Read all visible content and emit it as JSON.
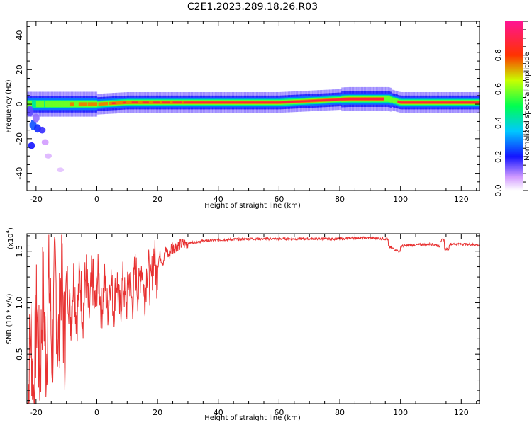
{
  "title": "C2E1.2023.289.18.26.R03",
  "chart_data": [
    {
      "type": "heatmap",
      "xlabel": "Height of straight line (km)",
      "ylabel": "Frequency (Hz)",
      "xlim": [
        -23,
        126
      ],
      "ylim": [
        -50,
        48
      ],
      "x_ticks": [
        -20,
        0,
        20,
        40,
        60,
        80,
        100,
        120
      ],
      "y_ticks": [
        -40,
        -20,
        0,
        20,
        40
      ],
      "colorbar": {
        "label": "Normalized spectral amplitude",
        "range": [
          0,
          1
        ],
        "ticks": [
          "0.0",
          "0.2",
          "0.4",
          "0.6",
          "0.8"
        ]
      },
      "ridge": [
        {
          "x": -23,
          "freq": 0,
          "amp": 0.55
        },
        {
          "x": -18,
          "freq": 0,
          "amp": 0.6
        },
        {
          "x": -10,
          "freq": 0,
          "amp": 0.7
        },
        {
          "x": 0,
          "freq": 0,
          "amp": 0.8
        },
        {
          "x": 10,
          "freq": 1,
          "amp": 0.85
        },
        {
          "x": 20,
          "freq": 1,
          "amp": 0.9
        },
        {
          "x": 30,
          "freq": 1,
          "amp": 0.95
        },
        {
          "x": 60,
          "freq": 1,
          "amp": 1.0
        },
        {
          "x": 83,
          "freq": 3,
          "amp": 1.0
        },
        {
          "x": 96,
          "freq": 3,
          "amp": 0.95
        },
        {
          "x": 100,
          "freq": 1,
          "amp": 0.9
        },
        {
          "x": 126,
          "freq": 1,
          "amp": 0.9
        }
      ]
    },
    {
      "type": "line",
      "xlabel": "Height of straight line (km)",
      "ylabel": "SNR (10 * v/v)",
      "y_scale_label": "(x10",
      "y_scale_exp": "4",
      "xlim": [
        -23,
        126
      ],
      "ylim": [
        0.02,
        1.67
      ],
      "x_ticks": [
        -20,
        0,
        20,
        40,
        60,
        80,
        100,
        120
      ],
      "y_ticks": [
        "0.5",
        "1.0",
        "1.5"
      ],
      "series": [
        {
          "color": "#e83232",
          "x": [
            -23,
            -20,
            -18,
            -16,
            -14,
            -12,
            -10,
            -8,
            -6,
            -4,
            -2,
            0,
            2,
            4,
            6,
            8,
            10,
            12,
            14,
            16,
            18,
            20,
            22,
            24,
            26,
            28,
            30,
            35,
            40,
            50,
            60,
            70,
            80,
            85,
            90,
            95,
            98,
            100,
            105,
            110,
            113,
            115,
            120,
            126
          ],
          "y": [
            0.25,
            0.55,
            0.75,
            0.85,
            0.9,
            0.95,
            1.0,
            1.05,
            1.05,
            1.1,
            1.05,
            1.15,
            1.05,
            1.1,
            1.1,
            1.05,
            1.1,
            1.15,
            1.25,
            1.2,
            1.3,
            1.4,
            1.45,
            1.5,
            1.55,
            1.57,
            1.58,
            1.6,
            1.61,
            1.62,
            1.62,
            1.62,
            1.62,
            1.63,
            1.63,
            1.62,
            1.58,
            1.55,
            1.56,
            1.57,
            1.55,
            1.57,
            1.57,
            1.56
          ]
        }
      ]
    }
  ]
}
